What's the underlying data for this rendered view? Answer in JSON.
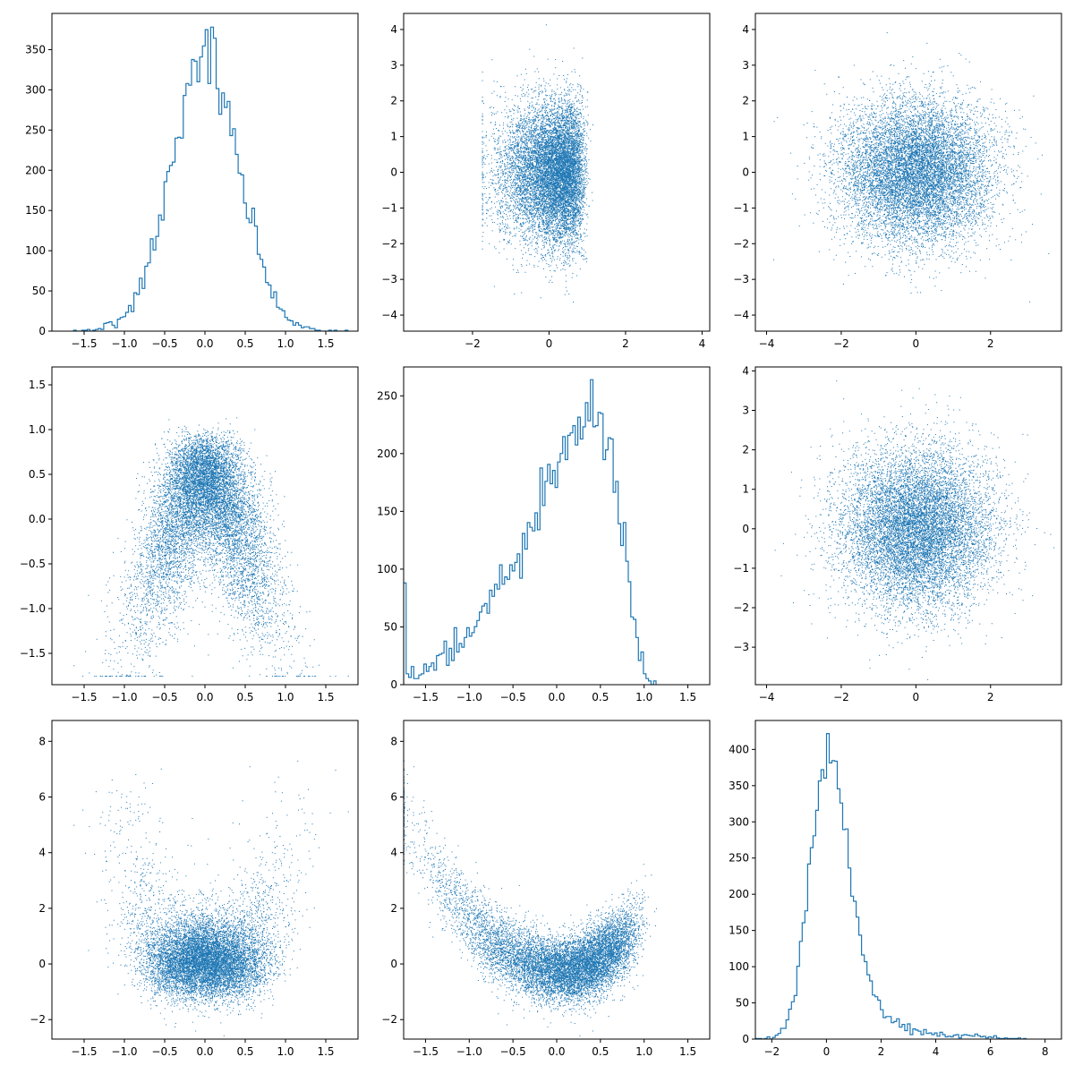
{
  "figure": {
    "layout": "3x3 pair plot",
    "accent_color": "#1f77b4"
  },
  "chart_data": [
    {
      "type": "histogram",
      "row": 0,
      "col": 0,
      "variable_index": 0,
      "distribution": "normal",
      "mean": 0.0,
      "sd": 0.42,
      "n": 10000,
      "xlim": [
        -1.9,
        1.9
      ],
      "ylim": [
        0,
        395
      ],
      "xticks": [
        -1.5,
        -1.0,
        -0.5,
        0.0,
        0.5,
        1.0,
        1.5
      ],
      "xtick_labels": [
        "−1.5",
        "−1.0",
        "−0.5",
        "0.0",
        "0.5",
        "1.0",
        "1.5"
      ],
      "yticks": [
        0,
        50,
        100,
        150,
        200,
        250,
        300,
        350
      ],
      "ytick_labels": [
        "0",
        "50",
        "100",
        "150",
        "200",
        "250",
        "300",
        "350"
      ],
      "peak_count": 378
    },
    {
      "type": "scatter",
      "row": 0,
      "col": 1,
      "x_variable": 1,
      "y_variable": 0,
      "x_distribution": "triangular",
      "y_distribution": "normal(0,1)",
      "n": 10000,
      "xlim": [
        -3.8,
        4.2
      ],
      "ylim": [
        -4.45,
        4.45
      ],
      "xticks": [
        -2,
        0,
        2,
        4
      ],
      "xtick_labels": [
        "−2",
        "0",
        "2",
        "4"
      ],
      "yticks": [
        -4,
        -3,
        -2,
        -1,
        0,
        1,
        2,
        3,
        4
      ],
      "ytick_labels": [
        "−4",
        "−3",
        "−2",
        "−1",
        "0",
        "1",
        "2",
        "3",
        "4"
      ]
    },
    {
      "type": "scatter",
      "row": 0,
      "col": 2,
      "x_variable": 2,
      "y_variable": 0,
      "x_distribution": "normal(0,1)",
      "y_distribution": "normal(0,1)",
      "n": 10000,
      "xlim": [
        -4.3,
        3.9
      ],
      "ylim": [
        -4.45,
        4.45
      ],
      "xticks": [
        -4,
        -2,
        0,
        2
      ],
      "xtick_labels": [
        "−4",
        "−2",
        "0",
        "2"
      ],
      "yticks": [
        -4,
        -3,
        -2,
        -1,
        0,
        1,
        2,
        3,
        4
      ],
      "ytick_labels": [
        "−4",
        "−3",
        "−2",
        "−1",
        "0",
        "1",
        "2",
        "3",
        "4"
      ]
    },
    {
      "type": "scatter",
      "row": 1,
      "col": 0,
      "x_variable": 0,
      "y_variable": 1,
      "relationship": "inverted triangle (y upper bound shrinks with |x|)",
      "n": 10000,
      "xlim": [
        -1.9,
        1.9
      ],
      "ylim": [
        -1.85,
        1.7
      ],
      "xticks": [
        -1.5,
        -1.0,
        -0.5,
        0.0,
        0.5,
        1.0,
        1.5
      ],
      "xtick_labels": [
        "−1.5",
        "−1.0",
        "−0.5",
        "0.0",
        "0.5",
        "1.0",
        "1.5"
      ],
      "yticks": [
        -1.5,
        -1.0,
        -0.5,
        0.0,
        0.5,
        1.0,
        1.5
      ],
      "ytick_labels": [
        "−1.5",
        "−1.0",
        "−0.5",
        "0.0",
        "0.5",
        "1.0",
        "1.5"
      ]
    },
    {
      "type": "histogram",
      "row": 1,
      "col": 1,
      "variable_index": 1,
      "distribution": "left-skewed, rising to peak near 0.7 then dropping sharply near 1.0",
      "n": 10000,
      "xlim": [
        -1.75,
        1.75
      ],
      "ylim": [
        0,
        275
      ],
      "xticks": [
        -1.5,
        -1.0,
        -0.5,
        0.0,
        0.5,
        1.0,
        1.5
      ],
      "xtick_labels": [
        "−1.5",
        "−1.0",
        "−0.5",
        "0.0",
        "0.5",
        "1.0",
        "1.5"
      ],
      "yticks": [
        0,
        50,
        100,
        150,
        200,
        250
      ],
      "ytick_labels": [
        "0",
        "50",
        "100",
        "150",
        "200",
        "250"
      ],
      "peak_count": 264
    },
    {
      "type": "scatter",
      "row": 1,
      "col": 2,
      "x_variable": 2,
      "y_variable": 1,
      "x_distribution": "normal(0,1)",
      "y_distribution": "normal(0,1)",
      "n": 10000,
      "xlim": [
        -4.3,
        3.9
      ],
      "ylim": [
        -3.95,
        4.1
      ],
      "xticks": [
        -4,
        -2,
        0,
        2
      ],
      "xtick_labels": [
        "−4",
        "−2",
        "0",
        "2"
      ],
      "yticks": [
        -3,
        -2,
        -1,
        0,
        1,
        2,
        3,
        4
      ],
      "ytick_labels": [
        "−3",
        "−2",
        "−1",
        "0",
        "1",
        "2",
        "3",
        "4"
      ]
    },
    {
      "type": "scatter",
      "row": 2,
      "col": 0,
      "x_variable": 0,
      "y_variable": 2,
      "x_distribution": "normal",
      "y_distribution": "right-skewed",
      "n": 10000,
      "xlim": [
        -1.9,
        1.9
      ],
      "ylim": [
        -2.7,
        8.75
      ],
      "xticks": [
        -1.5,
        -1.0,
        -0.5,
        0.0,
        0.5,
        1.0,
        1.5
      ],
      "xtick_labels": [
        "−1.5",
        "−1.0",
        "−0.5",
        "0.0",
        "0.5",
        "1.0",
        "1.5"
      ],
      "yticks": [
        -2,
        0,
        2,
        4,
        6,
        8
      ],
      "ytick_labels": [
        "−2",
        "0",
        "2",
        "4",
        "6",
        "8"
      ]
    },
    {
      "type": "scatter",
      "row": 2,
      "col": 1,
      "x_variable": 1,
      "y_variable": 2,
      "relationship": "U-shaped (y ≈ 1.8·x²)",
      "n": 10000,
      "xlim": [
        -1.75,
        1.75
      ],
      "ylim": [
        -2.7,
        8.75
      ],
      "xticks": [
        -1.5,
        -1.0,
        -0.5,
        0.0,
        0.5,
        1.0,
        1.5
      ],
      "xtick_labels": [
        "−1.5",
        "−1.0",
        "−0.5",
        "0.0",
        "0.5",
        "1.0",
        "1.5"
      ],
      "yticks": [
        -2,
        0,
        2,
        4,
        6,
        8
      ],
      "ytick_labels": [
        "−2",
        "0",
        "2",
        "4",
        "6",
        "8"
      ]
    },
    {
      "type": "histogram",
      "row": 2,
      "col": 2,
      "variable_index": 2,
      "distribution": "right-skewed, mode near 0.3",
      "n": 10000,
      "xlim": [
        -2.6,
        8.6
      ],
      "ylim": [
        0,
        440
      ],
      "xticks": [
        -2,
        0,
        2,
        4,
        6,
        8
      ],
      "xtick_labels": [
        "−2",
        "0",
        "2",
        "4",
        "6",
        "8"
      ],
      "yticks": [
        0,
        50,
        100,
        150,
        200,
        250,
        300,
        350,
        400
      ],
      "ytick_labels": [
        "0",
        "50",
        "100",
        "150",
        "200",
        "250",
        "300",
        "350",
        "400"
      ],
      "peak_count": 422
    }
  ]
}
